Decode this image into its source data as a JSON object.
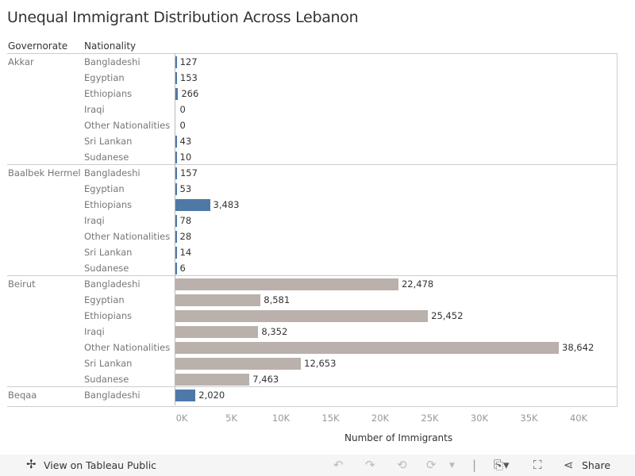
{
  "title": "Unequal Immigrant Distribution Across Lebanon",
  "headers": {
    "governorate": "Governorate",
    "nationality": "Nationality"
  },
  "colors": {
    "highlight": "#bab0ac",
    "default": "#4e79a7"
  },
  "chart_data": {
    "type": "bar",
    "orientation": "horizontal",
    "xlabel": "Number of Immigrants",
    "xlim": [
      0,
      44000
    ],
    "xticks": [
      "0K",
      "5K",
      "10K",
      "15K",
      "20K",
      "25K",
      "30K",
      "35K",
      "40K"
    ],
    "groups": [
      {
        "governorate": "Akkar",
        "rows": [
          {
            "nationality": "Bangladeshi",
            "value": 127,
            "label": "127"
          },
          {
            "nationality": "Egyptian",
            "value": 153,
            "label": "153"
          },
          {
            "nationality": "Ethiopians",
            "value": 266,
            "label": "266"
          },
          {
            "nationality": "Iraqi",
            "value": 0,
            "label": "0"
          },
          {
            "nationality": "Other Nationalities",
            "value": 0,
            "label": "0"
          },
          {
            "nationality": "Sri Lankan",
            "value": 43,
            "label": "43"
          },
          {
            "nationality": "Sudanese",
            "value": 10,
            "label": "10"
          }
        ]
      },
      {
        "governorate": "Baalbek Hermel",
        "rows": [
          {
            "nationality": "Bangladeshi",
            "value": 157,
            "label": "157"
          },
          {
            "nationality": "Egyptian",
            "value": 53,
            "label": "53"
          },
          {
            "nationality": "Ethiopians",
            "value": 3483,
            "label": "3,483"
          },
          {
            "nationality": "Iraqi",
            "value": 78,
            "label": "78"
          },
          {
            "nationality": "Other Nationalities",
            "value": 28,
            "label": "28"
          },
          {
            "nationality": "Sri Lankan",
            "value": 14,
            "label": "14"
          },
          {
            "nationality": "Sudanese",
            "value": 6,
            "label": "6"
          }
        ]
      },
      {
        "governorate": "Beirut",
        "highlight": true,
        "rows": [
          {
            "nationality": "Bangladeshi",
            "value": 22478,
            "label": "22,478"
          },
          {
            "nationality": "Egyptian",
            "value": 8581,
            "label": "8,581"
          },
          {
            "nationality": "Ethiopians",
            "value": 25452,
            "label": "25,452"
          },
          {
            "nationality": "Iraqi",
            "value": 8352,
            "label": "8,352"
          },
          {
            "nationality": "Other Nationalities",
            "value": 38642,
            "label": "38,642"
          },
          {
            "nationality": "Sri Lankan",
            "value": 12653,
            "label": "12,653"
          },
          {
            "nationality": "Sudanese",
            "value": 7463,
            "label": "7,463"
          }
        ]
      },
      {
        "governorate": "Beqaa",
        "rows": [
          {
            "nationality": "Bangladeshi",
            "value": 2020,
            "label": "2,020"
          }
        ]
      }
    ]
  },
  "footer": {
    "view_label": "View on Tableau Public",
    "share_label": "Share"
  }
}
